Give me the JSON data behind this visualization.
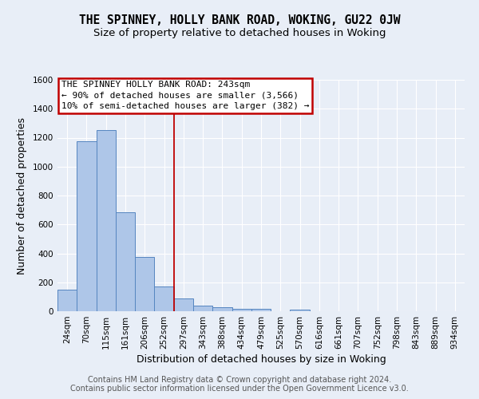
{
  "title": "THE SPINNEY, HOLLY BANK ROAD, WOKING, GU22 0JW",
  "subtitle": "Size of property relative to detached houses in Woking",
  "xlabel": "Distribution of detached houses by size in Woking",
  "ylabel": "Number of detached properties",
  "categories": [
    "24sqm",
    "70sqm",
    "115sqm",
    "161sqm",
    "206sqm",
    "252sqm",
    "297sqm",
    "343sqm",
    "388sqm",
    "434sqm",
    "479sqm",
    "525sqm",
    "570sqm",
    "616sqm",
    "661sqm",
    "707sqm",
    "752sqm",
    "798sqm",
    "843sqm",
    "889sqm",
    "934sqm"
  ],
  "values": [
    150,
    1175,
    1255,
    685,
    375,
    170,
    90,
    38,
    28,
    18,
    15,
    0,
    13,
    0,
    0,
    0,
    0,
    0,
    0,
    0,
    0
  ],
  "bar_color": "#aec6e8",
  "bar_edge_color": "#5585c0",
  "background_color": "#e8eef7",
  "grid_color": "#ffffff",
  "vline_x": 5.5,
  "vline_color": "#c00000",
  "annotation_text": "THE SPINNEY HOLLY BANK ROAD: 243sqm\n← 90% of detached houses are smaller (3,566)\n10% of semi-detached houses are larger (382) →",
  "annotation_box_color": "#ffffff",
  "annotation_box_edge_color": "#c00000",
  "footer_text": "Contains HM Land Registry data © Crown copyright and database right 2024.\nContains public sector information licensed under the Open Government Licence v3.0.",
  "ylim": [
    0,
    1600
  ],
  "yticks": [
    0,
    200,
    400,
    600,
    800,
    1000,
    1200,
    1400,
    1600
  ],
  "title_fontsize": 10.5,
  "subtitle_fontsize": 9.5,
  "axis_fontsize": 9,
  "tick_fontsize": 7.5,
  "annotation_fontsize": 8,
  "footer_fontsize": 7
}
